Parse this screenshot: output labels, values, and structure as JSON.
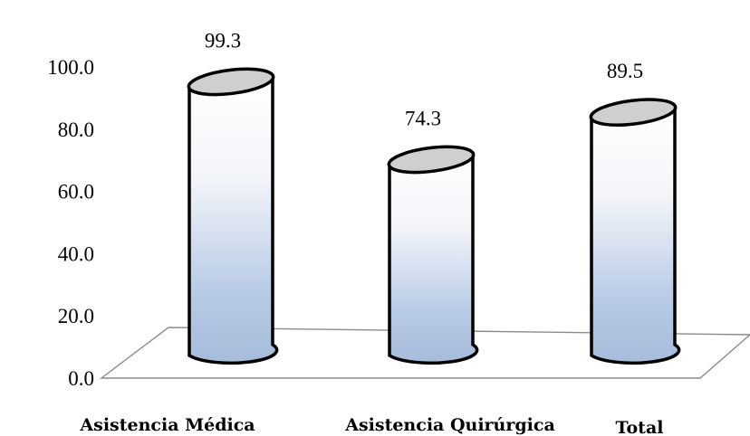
{
  "chart_data": {
    "type": "bar",
    "style": "3d-cylinder",
    "categories": [
      "Asistencia Médica",
      "Asistencia Quirúrgica",
      "Total"
    ],
    "values": [
      99.3,
      74.3,
      89.5
    ],
    "value_labels": [
      "99.3",
      "74.3",
      "89.5"
    ],
    "y_ticks": [
      "0.0",
      "20.0",
      "40.0",
      "60.0",
      "80.0",
      "100.0"
    ],
    "ylim": [
      0,
      100
    ],
    "title": "",
    "xlabel": "",
    "ylabel": "",
    "grid": false,
    "legend": "none",
    "colors": {
      "cylinder_top": "#cfcfcf",
      "cylinder_light": "#ffffff",
      "cylinder_dark": "#9fb6d6",
      "outline": "#000000",
      "floor": "#8c8c8c"
    }
  }
}
